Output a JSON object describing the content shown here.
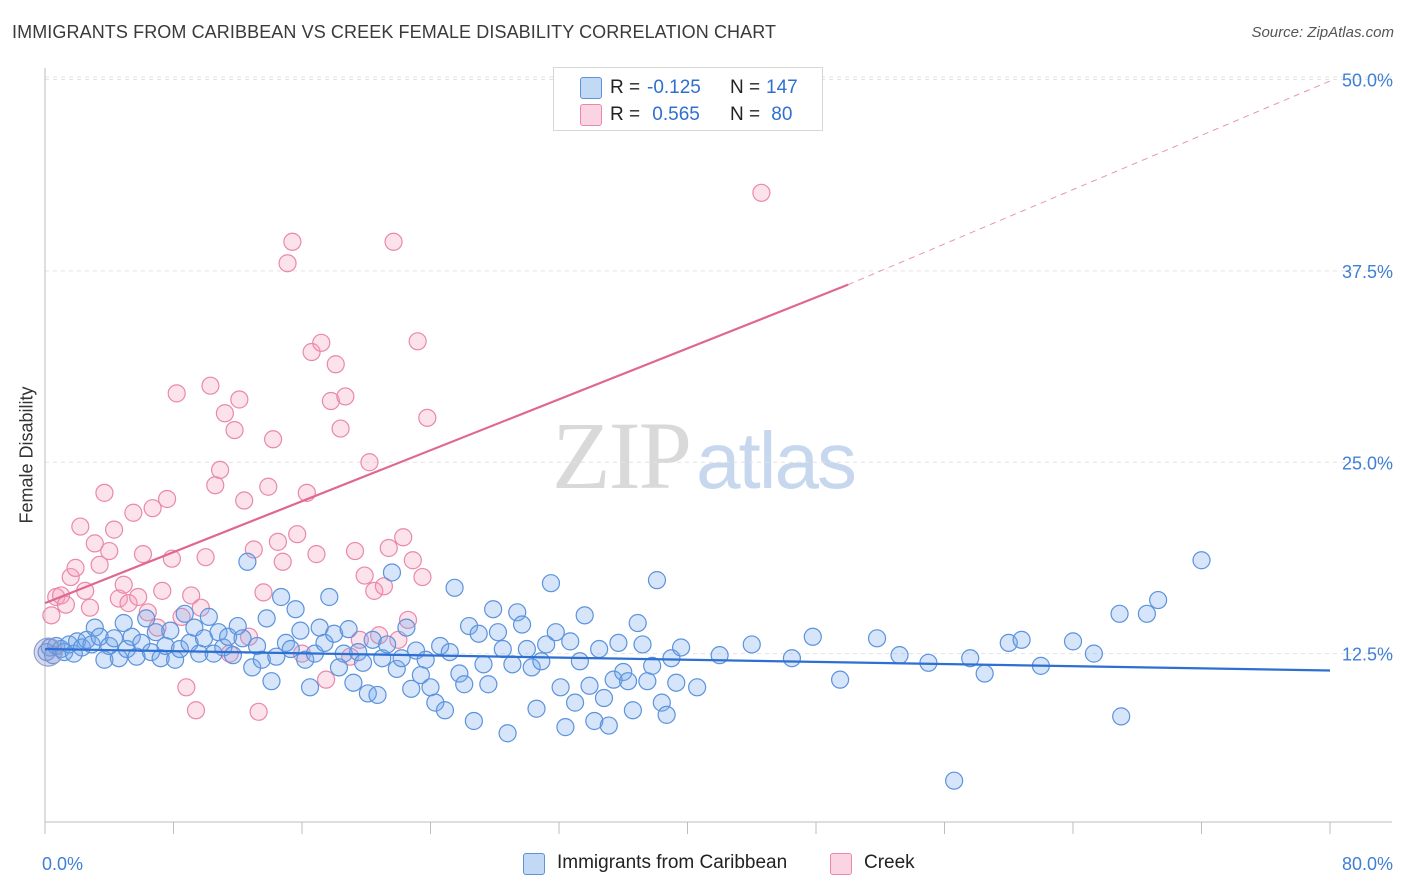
{
  "title": "IMMIGRANTS FROM CARIBBEAN VS CREEK FEMALE DISABILITY CORRELATION CHART",
  "source": "Source: ZipAtlas.com",
  "watermark": {
    "zip": "ZIP",
    "atlas": "atlas"
  },
  "legend_top": {
    "rows": [
      {
        "r_label": "R =",
        "r_value": "-0.125",
        "n_label": "N =",
        "n_value": "147",
        "color": "#a9c8f2"
      },
      {
        "r_label": "R =",
        "r_value": " 0.565",
        "n_label": "N =",
        "n_value": " 80",
        "color": "#f6b9cd"
      }
    ]
  },
  "legend_bottom": [
    {
      "label": "Immigrants from Caribbean",
      "color": "#a9c8f2"
    },
    {
      "label": "Creek",
      "color": "#f6b9cd"
    }
  ],
  "colors": {
    "blue_fill": "rgba(120,170,235,0.30)",
    "blue_stroke": "#5b93dd",
    "blue_line": "#2e6fd1",
    "pink_fill": "rgba(245,160,190,0.30)",
    "pink_stroke": "#ea88aa",
    "pink_line": "#e0678f",
    "grid": "#e3e3e3",
    "tick_text": "#3f7fd6"
  },
  "chart_data": {
    "type": "scatter",
    "title": "IMMIGRANTS FROM CARIBBEAN VS CREEK FEMALE DISABILITY CORRELATION CHART",
    "xlabel": "",
    "ylabel": "Female Disability",
    "xlim": [
      0,
      80
    ],
    "ylim": [
      0,
      52
    ],
    "x_tick_labels": [
      "0.0%",
      "80.0%"
    ],
    "y_ticks": [
      12.5,
      25.0,
      37.5,
      50.0
    ],
    "y_tick_labels": [
      "12.5%",
      "25.0%",
      "37.5%",
      "50.0%"
    ],
    "grid": true,
    "legend_placement": "top-center",
    "series": [
      {
        "name": "Immigrants from Caribbean",
        "r": -0.125,
        "n": 147,
        "trend": {
          "x": [
            0,
            80
          ],
          "y": [
            12.8,
            11.4
          ]
        },
        "points": [
          [
            0.1,
            12.6
          ],
          [
            0.3,
            12.9
          ],
          [
            0.5,
            12.4
          ],
          [
            0.7,
            13.0
          ],
          [
            1.0,
            12.8
          ],
          [
            1.2,
            12.6
          ],
          [
            1.5,
            13.1
          ],
          [
            1.8,
            12.5
          ],
          [
            2.0,
            13.3
          ],
          [
            2.3,
            12.9
          ],
          [
            2.6,
            13.4
          ],
          [
            2.9,
            13.1
          ],
          [
            3.1,
            14.2
          ],
          [
            3.4,
            13.6
          ],
          [
            3.7,
            12.1
          ],
          [
            4.0,
            13.0
          ],
          [
            4.3,
            13.5
          ],
          [
            4.6,
            12.2
          ],
          [
            4.9,
            14.5
          ],
          [
            5.1,
            12.8
          ],
          [
            5.4,
            13.6
          ],
          [
            5.7,
            12.3
          ],
          [
            6.0,
            13.2
          ],
          [
            6.3,
            14.8
          ],
          [
            6.6,
            12.6
          ],
          [
            6.9,
            13.9
          ],
          [
            7.2,
            12.2
          ],
          [
            7.5,
            13.0
          ],
          [
            7.8,
            14.0
          ],
          [
            8.1,
            12.1
          ],
          [
            8.4,
            12.8
          ],
          [
            8.7,
            15.1
          ],
          [
            9.0,
            13.2
          ],
          [
            9.3,
            14.2
          ],
          [
            9.6,
            12.5
          ],
          [
            9.9,
            13.5
          ],
          [
            10.2,
            14.9
          ],
          [
            10.5,
            12.5
          ],
          [
            10.8,
            13.9
          ],
          [
            11.1,
            12.9
          ],
          [
            11.4,
            13.6
          ],
          [
            11.7,
            12.4
          ],
          [
            12.0,
            14.3
          ],
          [
            12.3,
            13.5
          ],
          [
            12.6,
            18.5
          ],
          [
            12.9,
            11.6
          ],
          [
            13.2,
            13.0
          ],
          [
            13.5,
            12.1
          ],
          [
            13.8,
            14.8
          ],
          [
            14.1,
            10.7
          ],
          [
            14.4,
            12.3
          ],
          [
            14.7,
            16.2
          ],
          [
            15.0,
            13.2
          ],
          [
            15.3,
            12.8
          ],
          [
            15.6,
            15.4
          ],
          [
            15.9,
            14.0
          ],
          [
            16.2,
            12.1
          ],
          [
            16.5,
            10.3
          ],
          [
            16.8,
            12.5
          ],
          [
            17.1,
            14.2
          ],
          [
            17.4,
            13.2
          ],
          [
            17.7,
            16.2
          ],
          [
            18.0,
            13.8
          ],
          [
            18.3,
            11.6
          ],
          [
            18.6,
            12.5
          ],
          [
            18.9,
            14.1
          ],
          [
            19.2,
            10.6
          ],
          [
            19.5,
            12.6
          ],
          [
            19.8,
            11.9
          ],
          [
            20.1,
            9.9
          ],
          [
            20.4,
            13.4
          ],
          [
            20.7,
            9.8
          ],
          [
            21.0,
            12.2
          ],
          [
            21.3,
            13.1
          ],
          [
            21.6,
            17.8
          ],
          [
            21.9,
            11.5
          ],
          [
            22.2,
            12.2
          ],
          [
            22.5,
            14.2
          ],
          [
            22.8,
            10.2
          ],
          [
            23.1,
            12.7
          ],
          [
            23.4,
            11.1
          ],
          [
            23.7,
            12.1
          ],
          [
            24.0,
            10.3
          ],
          [
            24.3,
            9.3
          ],
          [
            24.6,
            13.0
          ],
          [
            24.9,
            8.8
          ],
          [
            25.2,
            12.6
          ],
          [
            25.5,
            16.8
          ],
          [
            25.8,
            11.2
          ],
          [
            26.1,
            10.5
          ],
          [
            26.4,
            14.3
          ],
          [
            26.7,
            8.1
          ],
          [
            27.0,
            13.8
          ],
          [
            27.3,
            11.8
          ],
          [
            27.6,
            10.5
          ],
          [
            27.9,
            15.4
          ],
          [
            28.2,
            13.9
          ],
          [
            28.5,
            12.8
          ],
          [
            28.8,
            7.3
          ],
          [
            29.1,
            11.8
          ],
          [
            29.4,
            15.2
          ],
          [
            29.7,
            14.4
          ],
          [
            30.0,
            12.8
          ],
          [
            30.3,
            11.6
          ],
          [
            30.6,
            8.9
          ],
          [
            30.9,
            12.0
          ],
          [
            31.2,
            13.1
          ],
          [
            31.5,
            17.1
          ],
          [
            31.8,
            13.9
          ],
          [
            32.1,
            10.3
          ],
          [
            32.4,
            7.7
          ],
          [
            32.7,
            13.3
          ],
          [
            33.0,
            9.3
          ],
          [
            33.3,
            12.0
          ],
          [
            33.6,
            15.0
          ],
          [
            33.9,
            10.4
          ],
          [
            34.2,
            8.1
          ],
          [
            34.5,
            12.8
          ],
          [
            34.8,
            9.6
          ],
          [
            35.1,
            7.8
          ],
          [
            35.4,
            10.8
          ],
          [
            35.7,
            13.2
          ],
          [
            36.0,
            11.3
          ],
          [
            36.3,
            10.7
          ],
          [
            36.6,
            8.8
          ],
          [
            36.9,
            14.5
          ],
          [
            37.2,
            13.1
          ],
          [
            37.5,
            10.7
          ],
          [
            37.8,
            11.7
          ],
          [
            38.1,
            17.3
          ],
          [
            38.4,
            9.3
          ],
          [
            38.7,
            8.5
          ],
          [
            39.0,
            12.2
          ],
          [
            39.3,
            10.6
          ],
          [
            39.6,
            12.9
          ],
          [
            40.6,
            10.3
          ],
          [
            42.0,
            12.4
          ],
          [
            44.0,
            13.1
          ],
          [
            46.5,
            12.2
          ],
          [
            47.8,
            13.6
          ],
          [
            49.5,
            10.8
          ],
          [
            51.8,
            13.5
          ],
          [
            53.2,
            12.4
          ],
          [
            55.0,
            11.9
          ],
          [
            57.6,
            12.2
          ],
          [
            60.0,
            13.2
          ],
          [
            62.0,
            11.7
          ],
          [
            65.3,
            12.5
          ],
          [
            66.9,
            15.1
          ],
          [
            68.6,
            15.1
          ],
          [
            69.3,
            16.0
          ],
          [
            72.0,
            18.6
          ],
          [
            56.6,
            4.2
          ],
          [
            60.8,
            13.4
          ],
          [
            64.0,
            13.3
          ],
          [
            67.0,
            8.4
          ],
          [
            58.5,
            11.2
          ]
        ]
      },
      {
        "name": "Creek",
        "r": 0.565,
        "n": 80,
        "trend": {
          "x": [
            0,
            50
          ],
          "y": [
            15.8,
            36.6
          ]
        },
        "trend_extension": {
          "x": [
            50,
            80
          ],
          "y": [
            36.6,
            49.9
          ]
        },
        "points": [
          [
            0.4,
            15.0
          ],
          [
            0.7,
            16.2
          ],
          [
            1.0,
            16.3
          ],
          [
            1.3,
            15.7
          ],
          [
            1.6,
            17.5
          ],
          [
            1.9,
            18.1
          ],
          [
            2.2,
            20.8
          ],
          [
            2.5,
            16.6
          ],
          [
            2.8,
            15.5
          ],
          [
            3.1,
            19.7
          ],
          [
            3.4,
            18.3
          ],
          [
            3.7,
            23.0
          ],
          [
            4.0,
            19.2
          ],
          [
            4.3,
            20.6
          ],
          [
            4.6,
            16.1
          ],
          [
            4.9,
            17.0
          ],
          [
            5.2,
            15.8
          ],
          [
            5.5,
            21.7
          ],
          [
            5.8,
            16.2
          ],
          [
            6.1,
            19.0
          ],
          [
            6.4,
            15.2
          ],
          [
            6.7,
            22.0
          ],
          [
            7.0,
            14.2
          ],
          [
            7.3,
            16.6
          ],
          [
            7.6,
            22.6
          ],
          [
            7.9,
            18.7
          ],
          [
            8.2,
            29.5
          ],
          [
            8.5,
            14.9
          ],
          [
            8.8,
            10.3
          ],
          [
            9.1,
            16.3
          ],
          [
            9.4,
            8.8
          ],
          [
            9.7,
            15.5
          ],
          [
            10.0,
            18.8
          ],
          [
            10.3,
            30.0
          ],
          [
            10.6,
            23.5
          ],
          [
            10.9,
            24.5
          ],
          [
            11.2,
            28.2
          ],
          [
            11.5,
            12.5
          ],
          [
            11.8,
            27.1
          ],
          [
            12.1,
            29.1
          ],
          [
            12.4,
            22.5
          ],
          [
            12.7,
            13.6
          ],
          [
            13.0,
            19.3
          ],
          [
            13.3,
            8.7
          ],
          [
            13.6,
            16.5
          ],
          [
            13.9,
            23.4
          ],
          [
            14.2,
            26.5
          ],
          [
            14.5,
            19.8
          ],
          [
            14.8,
            18.5
          ],
          [
            15.1,
            38.0
          ],
          [
            15.4,
            39.4
          ],
          [
            15.7,
            20.3
          ],
          [
            16.0,
            12.5
          ],
          [
            16.3,
            23.0
          ],
          [
            16.6,
            32.2
          ],
          [
            16.9,
            19.0
          ],
          [
            17.2,
            32.8
          ],
          [
            17.5,
            10.8
          ],
          [
            17.8,
            29.0
          ],
          [
            18.1,
            31.4
          ],
          [
            18.4,
            27.2
          ],
          [
            18.7,
            29.3
          ],
          [
            19.0,
            12.3
          ],
          [
            19.3,
            19.2
          ],
          [
            19.6,
            13.4
          ],
          [
            19.9,
            17.6
          ],
          [
            20.2,
            25.0
          ],
          [
            20.5,
            16.6
          ],
          [
            20.8,
            13.7
          ],
          [
            21.1,
            16.9
          ],
          [
            21.4,
            19.4
          ],
          [
            21.7,
            39.4
          ],
          [
            22.0,
            13.4
          ],
          [
            22.3,
            20.1
          ],
          [
            22.6,
            14.7
          ],
          [
            22.9,
            18.6
          ],
          [
            23.2,
            32.9
          ],
          [
            23.5,
            17.5
          ],
          [
            23.8,
            27.9
          ],
          [
            44.6,
            42.6
          ]
        ]
      }
    ]
  }
}
